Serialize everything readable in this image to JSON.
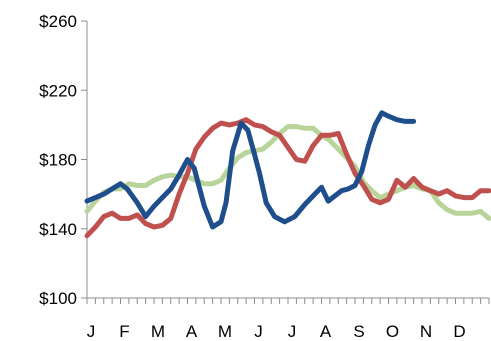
{
  "chart_data": {
    "type": "line",
    "title": "",
    "xlabel": "",
    "ylabel": "",
    "categories": [
      "J",
      "F",
      "M",
      "A",
      "M",
      "J",
      "J",
      "A",
      "S",
      "O",
      "N",
      "D"
    ],
    "x_range": [
      0,
      12
    ],
    "ylim": [
      100,
      260
    ],
    "yticks": [
      100,
      140,
      180,
      220,
      260
    ],
    "ytick_labels": [
      "$100",
      "$140",
      "$180",
      "$220",
      "$260"
    ],
    "grid": {
      "horizontal": false,
      "vertical": false
    },
    "legend": "none",
    "series": [
      {
        "color": "#1f4e8c",
        "x": [
          0.0,
          0.25,
          0.5,
          0.75,
          1.0,
          1.2,
          1.5,
          1.75,
          2.0,
          2.2,
          2.5,
          2.75,
          3.0,
          3.2,
          3.5,
          3.75,
          4.0,
          4.15,
          4.35,
          4.6,
          4.8,
          5.0,
          5.15,
          5.35,
          5.6,
          5.9,
          6.2,
          6.5,
          6.8,
          7.0,
          7.2,
          7.4,
          7.6,
          7.8,
          8.0,
          8.2,
          8.4,
          8.6,
          8.8,
          9.0,
          9.25,
          9.5,
          9.75
        ],
        "y": [
          156,
          158,
          160,
          163,
          166,
          163,
          155,
          147,
          153,
          157,
          163,
          171,
          180,
          175,
          153,
          141,
          144,
          155,
          185,
          201,
          197,
          183,
          172,
          155,
          147,
          144,
          147,
          154,
          160,
          164,
          156,
          159,
          162,
          163,
          165,
          173,
          188,
          200,
          207,
          205,
          203,
          202,
          202
        ]
      },
      {
        "color": "#c0504d",
        "x": [
          0.0,
          0.25,
          0.5,
          0.75,
          1.0,
          1.25,
          1.5,
          1.75,
          2.0,
          2.25,
          2.5,
          2.75,
          3.0,
          3.25,
          3.5,
          3.75,
          4.0,
          4.25,
          4.5,
          4.75,
          5.0,
          5.25,
          5.5,
          5.75,
          6.0,
          6.25,
          6.5,
          6.75,
          7.0,
          7.25,
          7.5,
          7.75,
          8.0,
          8.25,
          8.5,
          8.75,
          9.0,
          9.25,
          9.5,
          9.75,
          10.0,
          10.25,
          10.5,
          10.75,
          11.0,
          11.25,
          11.5,
          11.75,
          12.0
        ],
        "y": [
          136,
          141,
          147,
          149,
          146,
          146,
          148,
          143,
          141,
          142,
          146,
          160,
          172,
          186,
          193,
          198,
          201,
          200,
          201,
          203,
          200,
          199,
          196,
          194,
          187,
          180,
          179,
          188,
          194,
          194,
          195,
          183,
          172,
          165,
          157,
          155,
          157,
          168,
          164,
          169,
          164,
          162,
          160,
          162,
          159,
          158,
          158,
          162,
          162
        ]
      },
      {
        "color": "#b9d49a",
        "x": [
          0.0,
          0.25,
          0.5,
          0.75,
          1.0,
          1.25,
          1.5,
          1.75,
          2.0,
          2.25,
          2.5,
          2.75,
          3.0,
          3.25,
          3.5,
          3.75,
          4.0,
          4.25,
          4.5,
          4.75,
          5.0,
          5.25,
          5.5,
          5.75,
          6.0,
          6.25,
          6.5,
          6.75,
          7.0,
          7.25,
          7.5,
          7.75,
          8.0,
          8.25,
          8.5,
          8.75,
          9.0,
          9.25,
          9.5,
          9.75,
          10.0,
          10.25,
          10.5,
          10.75,
          11.0,
          11.25,
          11.5,
          11.75,
          12.0
        ],
        "y": [
          150,
          156,
          161,
          163,
          163,
          166,
          165,
          165,
          168,
          170,
          171,
          170,
          170,
          168,
          166,
          166,
          168,
          175,
          181,
          184,
          185,
          186,
          190,
          195,
          199,
          199,
          198,
          198,
          194,
          191,
          186,
          181,
          176,
          167,
          162,
          158,
          160,
          162,
          164,
          165,
          163,
          162,
          155,
          151,
          149,
          149,
          149,
          150,
          146
        ]
      }
    ]
  }
}
